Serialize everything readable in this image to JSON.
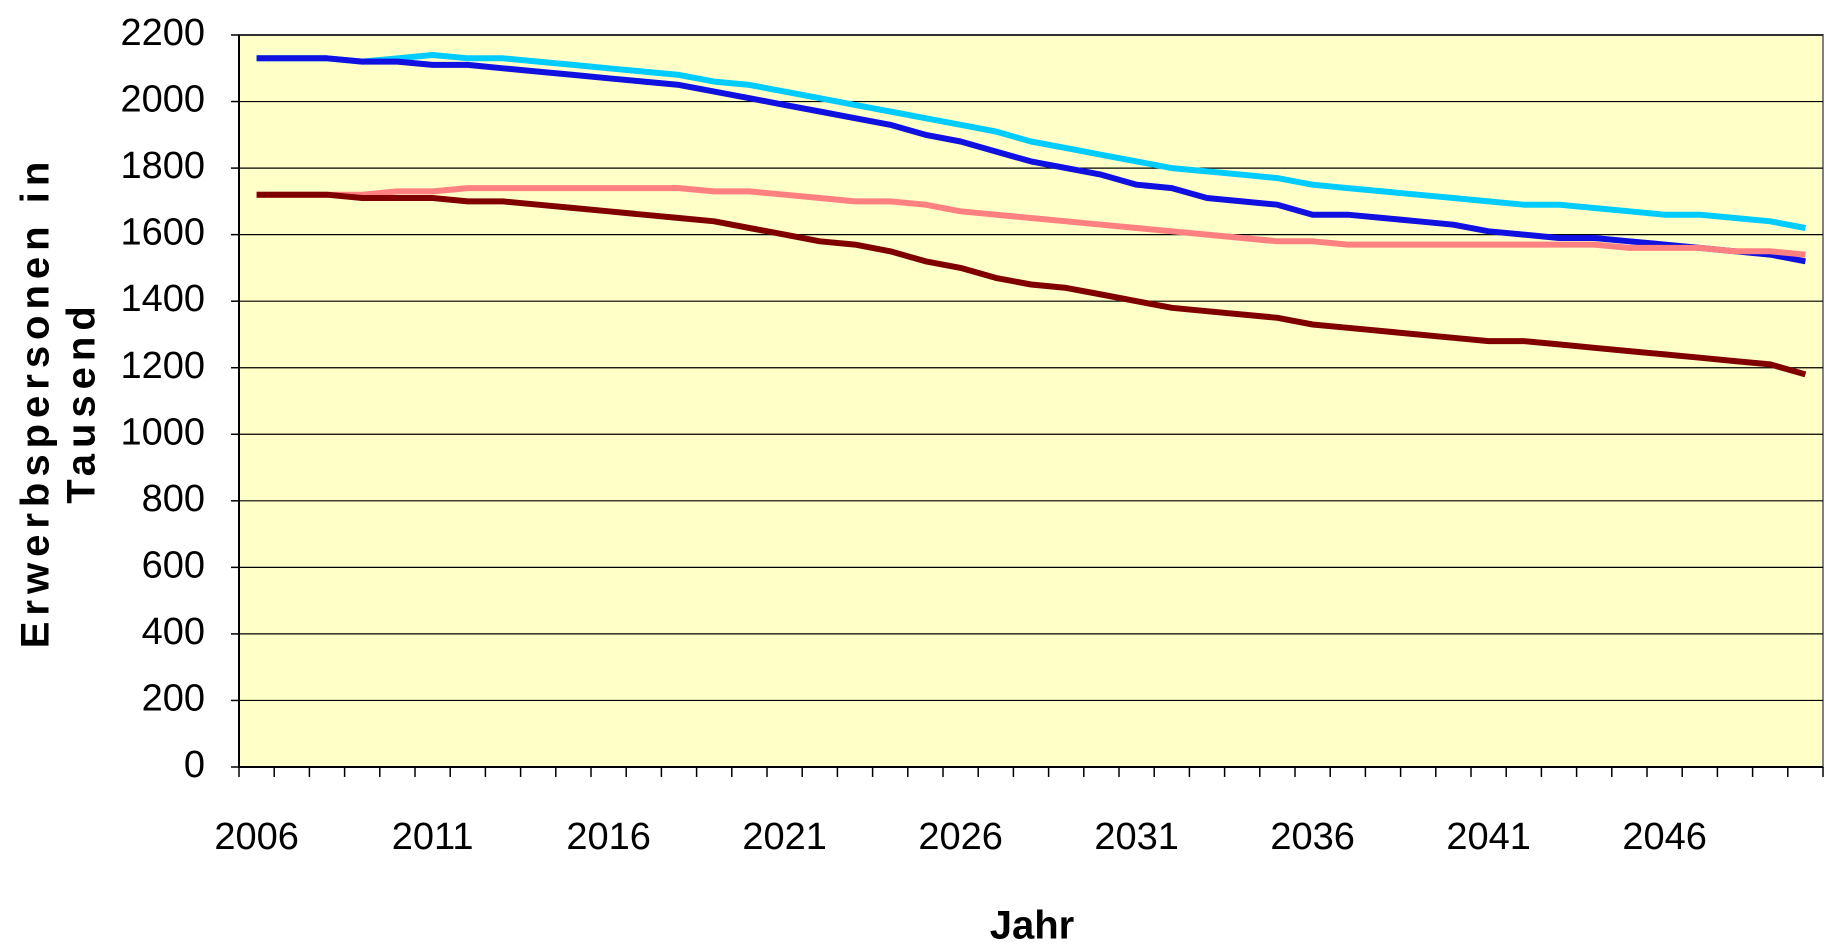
{
  "chart_data": {
    "type": "line",
    "xlabel": "Jahr",
    "ylabel": [
      "Erwerbspersonen in",
      "Tausend"
    ],
    "categories": [
      "2006",
      null,
      null,
      null,
      null,
      "2011",
      null,
      null,
      null,
      null,
      "2016",
      null,
      null,
      null,
      null,
      "2021",
      null,
      null,
      null,
      null,
      "2026",
      null,
      null,
      null,
      null,
      "2031",
      null,
      null,
      null,
      null,
      "2036",
      null,
      null,
      null,
      null,
      "2041",
      null,
      null,
      null,
      null,
      "2046",
      null,
      null,
      null,
      null
    ],
    "series": [
      {
        "color": "#00ccff",
        "values": [
          2130,
          2130,
          2130,
          2120,
          2130,
          2140,
          2130,
          2130,
          2120,
          2110,
          2100,
          2090,
          2080,
          2060,
          2050,
          2030,
          2010,
          1990,
          1970,
          1950,
          1930,
          1910,
          1880,
          1860,
          1840,
          1820,
          1800,
          1790,
          1780,
          1770,
          1750,
          1740,
          1730,
          1720,
          1710,
          1700,
          1690,
          1690,
          1680,
          1670,
          1660,
          1660,
          1650,
          1640,
          1620
        ]
      },
      {
        "color": "#1010e0",
        "values": [
          2130,
          2130,
          2130,
          2120,
          2120,
          2110,
          2110,
          2100,
          2090,
          2080,
          2070,
          2060,
          2050,
          2030,
          2010,
          1990,
          1970,
          1950,
          1930,
          1900,
          1880,
          1850,
          1820,
          1800,
          1780,
          1750,
          1740,
          1710,
          1700,
          1690,
          1660,
          1660,
          1650,
          1640,
          1630,
          1610,
          1600,
          1590,
          1590,
          1580,
          1570,
          1560,
          1550,
          1540,
          1520
        ]
      },
      {
        "color": "#ff8080",
        "values": [
          1720,
          1720,
          1720,
          1720,
          1730,
          1730,
          1740,
          1740,
          1740,
          1740,
          1740,
          1740,
          1740,
          1730,
          1730,
          1720,
          1710,
          1700,
          1700,
          1690,
          1670,
          1660,
          1650,
          1640,
          1630,
          1620,
          1610,
          1600,
          1590,
          1580,
          1580,
          1570,
          1570,
          1570,
          1570,
          1570,
          1570,
          1570,
          1570,
          1560,
          1560,
          1560,
          1550,
          1550,
          1540
        ]
      },
      {
        "color": "#800000",
        "values": [
          1720,
          1720,
          1720,
          1710,
          1710,
          1710,
          1700,
          1700,
          1690,
          1680,
          1670,
          1660,
          1650,
          1640,
          1620,
          1600,
          1580,
          1570,
          1550,
          1520,
          1500,
          1470,
          1450,
          1440,
          1420,
          1400,
          1380,
          1370,
          1360,
          1350,
          1330,
          1320,
          1310,
          1300,
          1290,
          1280,
          1280,
          1270,
          1260,
          1250,
          1240,
          1230,
          1220,
          1210,
          1180
        ]
      }
    ],
    "ylim": [
      0,
      2200
    ],
    "yticks": [
      0,
      200,
      400,
      600,
      800,
      1000,
      1200,
      1400,
      1600,
      1800,
      2000,
      2200
    ],
    "grid": true,
    "plot_background": "#ffffc8"
  }
}
